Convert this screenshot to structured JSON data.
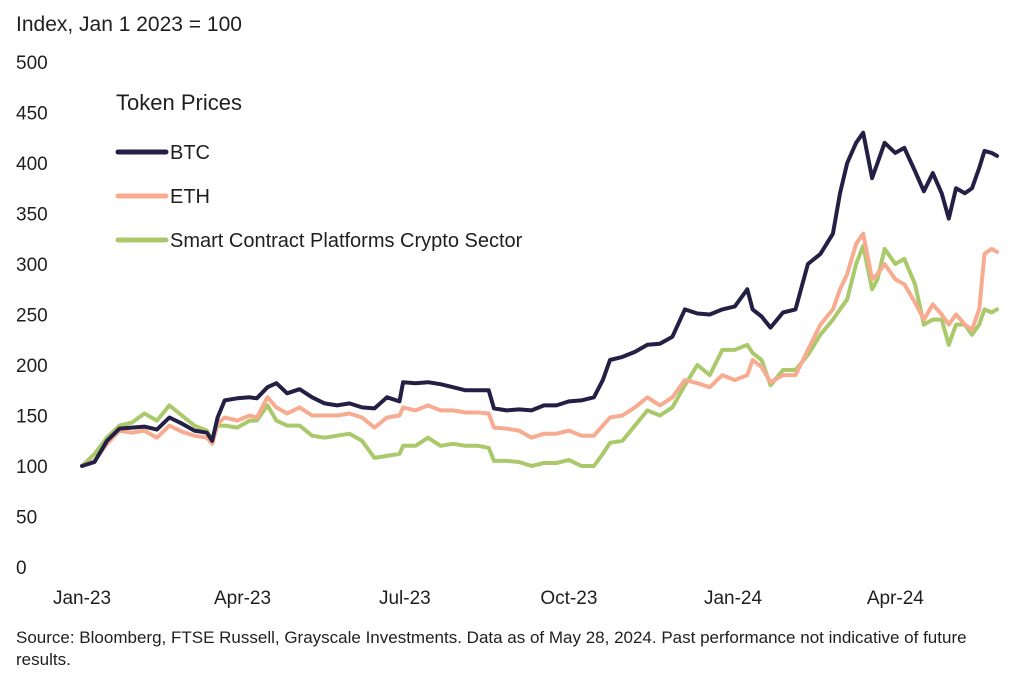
{
  "chart_data": {
    "type": "line",
    "ylabel": "Index, Jan 1 2023 = 100",
    "ylim": [
      0,
      500
    ],
    "yticks": [
      0,
      50,
      100,
      150,
      200,
      250,
      300,
      350,
      400,
      450,
      500
    ],
    "xlim": [
      "2023-01-01",
      "2024-05-28"
    ],
    "xticks": [
      {
        "date": "2023-01-01",
        "label": "Jan-23"
      },
      {
        "date": "2023-04-01",
        "label": "Apr-23"
      },
      {
        "date": "2023-07-01",
        "label": "Jul-23"
      },
      {
        "date": "2023-10-01",
        "label": "Oct-23"
      },
      {
        "date": "2024-01-01",
        "label": "Jan-24"
      },
      {
        "date": "2024-04-01",
        "label": "Apr-24"
      }
    ],
    "grid": false,
    "legend": {
      "title": "Token Prices",
      "position": "top-left"
    },
    "series": [
      {
        "name": "BTC",
        "color": "#241f45",
        "points": [
          [
            "2023-01-01",
            100
          ],
          [
            "2023-01-08",
            104
          ],
          [
            "2023-01-15",
            125
          ],
          [
            "2023-01-22",
            137
          ],
          [
            "2023-01-29",
            138
          ],
          [
            "2023-02-05",
            139
          ],
          [
            "2023-02-12",
            136
          ],
          [
            "2023-02-19",
            148
          ],
          [
            "2023-02-26",
            142
          ],
          [
            "2023-03-05",
            135
          ],
          [
            "2023-03-12",
            133
          ],
          [
            "2023-03-15",
            125
          ],
          [
            "2023-03-18",
            148
          ],
          [
            "2023-03-22",
            165
          ],
          [
            "2023-03-29",
            167
          ],
          [
            "2023-04-05",
            168
          ],
          [
            "2023-04-09",
            167
          ],
          [
            "2023-04-15",
            178
          ],
          [
            "2023-04-20",
            182
          ],
          [
            "2023-04-26",
            172
          ],
          [
            "2023-05-03",
            176
          ],
          [
            "2023-05-10",
            168
          ],
          [
            "2023-05-17",
            162
          ],
          [
            "2023-05-24",
            160
          ],
          [
            "2023-05-31",
            162
          ],
          [
            "2023-06-07",
            158
          ],
          [
            "2023-06-14",
            157
          ],
          [
            "2023-06-21",
            168
          ],
          [
            "2023-06-28",
            164
          ],
          [
            "2023-06-30",
            183
          ],
          [
            "2023-07-07",
            182
          ],
          [
            "2023-07-14",
            183
          ],
          [
            "2023-07-21",
            181
          ],
          [
            "2023-07-28",
            178
          ],
          [
            "2023-08-04",
            175
          ],
          [
            "2023-08-11",
            175
          ],
          [
            "2023-08-17",
            175
          ],
          [
            "2023-08-20",
            157
          ],
          [
            "2023-08-27",
            155
          ],
          [
            "2023-09-03",
            156
          ],
          [
            "2023-09-10",
            155
          ],
          [
            "2023-09-17",
            160
          ],
          [
            "2023-09-24",
            160
          ],
          [
            "2023-10-01",
            164
          ],
          [
            "2023-10-08",
            165
          ],
          [
            "2023-10-15",
            168
          ],
          [
            "2023-10-20",
            185
          ],
          [
            "2023-10-24",
            205
          ],
          [
            "2023-10-31",
            208
          ],
          [
            "2023-11-07",
            213
          ],
          [
            "2023-11-14",
            220
          ],
          [
            "2023-11-21",
            221
          ],
          [
            "2023-11-28",
            228
          ],
          [
            "2023-12-05",
            255
          ],
          [
            "2023-12-12",
            251
          ],
          [
            "2023-12-19",
            250
          ],
          [
            "2023-12-26",
            255
          ],
          [
            "2024-01-02",
            258
          ],
          [
            "2024-01-09",
            275
          ],
          [
            "2024-01-12",
            255
          ],
          [
            "2024-01-17",
            248
          ],
          [
            "2024-01-22",
            237
          ],
          [
            "2024-01-29",
            252
          ],
          [
            "2024-02-05",
            255
          ],
          [
            "2024-02-12",
            300
          ],
          [
            "2024-02-19",
            310
          ],
          [
            "2024-02-26",
            330
          ],
          [
            "2024-03-01",
            370
          ],
          [
            "2024-03-05",
            400
          ],
          [
            "2024-03-10",
            420
          ],
          [
            "2024-03-14",
            430
          ],
          [
            "2024-03-19",
            385
          ],
          [
            "2024-03-22",
            400
          ],
          [
            "2024-03-26",
            420
          ],
          [
            "2024-04-01",
            410
          ],
          [
            "2024-04-06",
            415
          ],
          [
            "2024-04-12",
            392
          ],
          [
            "2024-04-17",
            372
          ],
          [
            "2024-04-22",
            390
          ],
          [
            "2024-04-27",
            370
          ],
          [
            "2024-05-01",
            345
          ],
          [
            "2024-05-05",
            375
          ],
          [
            "2024-05-10",
            370
          ],
          [
            "2024-05-14",
            375
          ],
          [
            "2024-05-18",
            395
          ],
          [
            "2024-05-21",
            412
          ],
          [
            "2024-05-25",
            410
          ],
          [
            "2024-05-28",
            407
          ]
        ]
      },
      {
        "name": "ETH",
        "color": "#f7ab90",
        "points": [
          [
            "2023-01-01",
            100
          ],
          [
            "2023-01-08",
            105
          ],
          [
            "2023-01-15",
            122
          ],
          [
            "2023-01-22",
            135
          ],
          [
            "2023-01-29",
            133
          ],
          [
            "2023-02-05",
            135
          ],
          [
            "2023-02-12",
            128
          ],
          [
            "2023-02-19",
            140
          ],
          [
            "2023-02-26",
            134
          ],
          [
            "2023-03-05",
            130
          ],
          [
            "2023-03-12",
            128
          ],
          [
            "2023-03-15",
            122
          ],
          [
            "2023-03-18",
            142
          ],
          [
            "2023-03-22",
            148
          ],
          [
            "2023-03-29",
            145
          ],
          [
            "2023-04-05",
            150
          ],
          [
            "2023-04-09",
            148
          ],
          [
            "2023-04-15",
            168
          ],
          [
            "2023-04-20",
            158
          ],
          [
            "2023-04-26",
            152
          ],
          [
            "2023-05-03",
            158
          ],
          [
            "2023-05-10",
            150
          ],
          [
            "2023-05-17",
            150
          ],
          [
            "2023-05-24",
            150
          ],
          [
            "2023-05-31",
            152
          ],
          [
            "2023-06-07",
            148
          ],
          [
            "2023-06-14",
            138
          ],
          [
            "2023-06-21",
            148
          ],
          [
            "2023-06-28",
            150
          ],
          [
            "2023-06-30",
            158
          ],
          [
            "2023-07-07",
            155
          ],
          [
            "2023-07-14",
            160
          ],
          [
            "2023-07-21",
            155
          ],
          [
            "2023-07-28",
            155
          ],
          [
            "2023-08-04",
            153
          ],
          [
            "2023-08-11",
            153
          ],
          [
            "2023-08-17",
            152
          ],
          [
            "2023-08-20",
            138
          ],
          [
            "2023-08-27",
            137
          ],
          [
            "2023-09-03",
            135
          ],
          [
            "2023-09-10",
            128
          ],
          [
            "2023-09-17",
            132
          ],
          [
            "2023-09-24",
            132
          ],
          [
            "2023-10-01",
            135
          ],
          [
            "2023-10-08",
            130
          ],
          [
            "2023-10-15",
            130
          ],
          [
            "2023-10-20",
            140
          ],
          [
            "2023-10-24",
            148
          ],
          [
            "2023-10-31",
            150
          ],
          [
            "2023-11-07",
            158
          ],
          [
            "2023-11-14",
            168
          ],
          [
            "2023-11-21",
            160
          ],
          [
            "2023-11-28",
            168
          ],
          [
            "2023-12-05",
            185
          ],
          [
            "2023-12-12",
            182
          ],
          [
            "2023-12-19",
            178
          ],
          [
            "2023-12-26",
            190
          ],
          [
            "2024-01-02",
            185
          ],
          [
            "2024-01-09",
            190
          ],
          [
            "2024-01-12",
            205
          ],
          [
            "2024-01-17",
            198
          ],
          [
            "2024-01-22",
            183
          ],
          [
            "2024-01-29",
            190
          ],
          [
            "2024-02-05",
            190
          ],
          [
            "2024-02-12",
            215
          ],
          [
            "2024-02-19",
            240
          ],
          [
            "2024-02-26",
            255
          ],
          [
            "2024-03-01",
            275
          ],
          [
            "2024-03-05",
            290
          ],
          [
            "2024-03-10",
            320
          ],
          [
            "2024-03-14",
            330
          ],
          [
            "2024-03-19",
            285
          ],
          [
            "2024-03-22",
            290
          ],
          [
            "2024-03-26",
            300
          ],
          [
            "2024-04-01",
            285
          ],
          [
            "2024-04-06",
            280
          ],
          [
            "2024-04-12",
            262
          ],
          [
            "2024-04-17",
            245
          ],
          [
            "2024-04-22",
            260
          ],
          [
            "2024-04-27",
            250
          ],
          [
            "2024-05-01",
            240
          ],
          [
            "2024-05-05",
            250
          ],
          [
            "2024-05-10",
            240
          ],
          [
            "2024-05-14",
            235
          ],
          [
            "2024-05-18",
            255
          ],
          [
            "2024-05-21",
            310
          ],
          [
            "2024-05-25",
            315
          ],
          [
            "2024-05-28",
            312
          ]
        ]
      },
      {
        "name": "Smart Contract Platforms Crypto Sector",
        "color": "#a9c96a",
        "points": [
          [
            "2023-01-01",
            100
          ],
          [
            "2023-01-08",
            112
          ],
          [
            "2023-01-15",
            128
          ],
          [
            "2023-01-22",
            140
          ],
          [
            "2023-01-29",
            143
          ],
          [
            "2023-02-05",
            152
          ],
          [
            "2023-02-12",
            145
          ],
          [
            "2023-02-19",
            160
          ],
          [
            "2023-02-26",
            150
          ],
          [
            "2023-03-05",
            140
          ],
          [
            "2023-03-12",
            135
          ],
          [
            "2023-03-15",
            125
          ],
          [
            "2023-03-18",
            140
          ],
          [
            "2023-03-22",
            140
          ],
          [
            "2023-03-29",
            138
          ],
          [
            "2023-04-05",
            145
          ],
          [
            "2023-04-09",
            145
          ],
          [
            "2023-04-15",
            160
          ],
          [
            "2023-04-20",
            145
          ],
          [
            "2023-04-26",
            140
          ],
          [
            "2023-05-03",
            140
          ],
          [
            "2023-05-10",
            130
          ],
          [
            "2023-05-17",
            128
          ],
          [
            "2023-05-24",
            130
          ],
          [
            "2023-05-31",
            132
          ],
          [
            "2023-06-07",
            125
          ],
          [
            "2023-06-14",
            108
          ],
          [
            "2023-06-21",
            110
          ],
          [
            "2023-06-28",
            112
          ],
          [
            "2023-06-30",
            120
          ],
          [
            "2023-07-07",
            120
          ],
          [
            "2023-07-14",
            128
          ],
          [
            "2023-07-21",
            120
          ],
          [
            "2023-07-28",
            122
          ],
          [
            "2023-08-04",
            120
          ],
          [
            "2023-08-11",
            120
          ],
          [
            "2023-08-17",
            118
          ],
          [
            "2023-08-20",
            105
          ],
          [
            "2023-08-27",
            105
          ],
          [
            "2023-09-03",
            104
          ],
          [
            "2023-09-10",
            100
          ],
          [
            "2023-09-17",
            103
          ],
          [
            "2023-09-24",
            103
          ],
          [
            "2023-10-01",
            106
          ],
          [
            "2023-10-08",
            100
          ],
          [
            "2023-10-15",
            100
          ],
          [
            "2023-10-20",
            112
          ],
          [
            "2023-10-24",
            123
          ],
          [
            "2023-10-31",
            125
          ],
          [
            "2023-11-07",
            140
          ],
          [
            "2023-11-14",
            155
          ],
          [
            "2023-11-21",
            150
          ],
          [
            "2023-11-28",
            158
          ],
          [
            "2023-12-05",
            180
          ],
          [
            "2023-12-12",
            200
          ],
          [
            "2023-12-19",
            190
          ],
          [
            "2023-12-26",
            215
          ],
          [
            "2024-01-02",
            215
          ],
          [
            "2024-01-09",
            220
          ],
          [
            "2024-01-12",
            212
          ],
          [
            "2024-01-17",
            205
          ],
          [
            "2024-01-22",
            180
          ],
          [
            "2024-01-29",
            195
          ],
          [
            "2024-02-05",
            195
          ],
          [
            "2024-02-12",
            210
          ],
          [
            "2024-02-19",
            230
          ],
          [
            "2024-02-26",
            245
          ],
          [
            "2024-03-01",
            255
          ],
          [
            "2024-03-05",
            265
          ],
          [
            "2024-03-10",
            300
          ],
          [
            "2024-03-14",
            318
          ],
          [
            "2024-03-19",
            275
          ],
          [
            "2024-03-22",
            285
          ],
          [
            "2024-03-26",
            315
          ],
          [
            "2024-04-01",
            300
          ],
          [
            "2024-04-06",
            305
          ],
          [
            "2024-04-12",
            280
          ],
          [
            "2024-04-17",
            240
          ],
          [
            "2024-04-22",
            245
          ],
          [
            "2024-04-27",
            245
          ],
          [
            "2024-05-01",
            220
          ],
          [
            "2024-05-05",
            240
          ],
          [
            "2024-05-10",
            240
          ],
          [
            "2024-05-14",
            230
          ],
          [
            "2024-05-18",
            240
          ],
          [
            "2024-05-21",
            255
          ],
          [
            "2024-05-25",
            252
          ],
          [
            "2024-05-28",
            255
          ]
        ]
      }
    ]
  },
  "source_note": "Source: Bloomberg, FTSE Russell, Grayscale Investments. Data as of May 28, 2024. Past performance not indicative of future results."
}
